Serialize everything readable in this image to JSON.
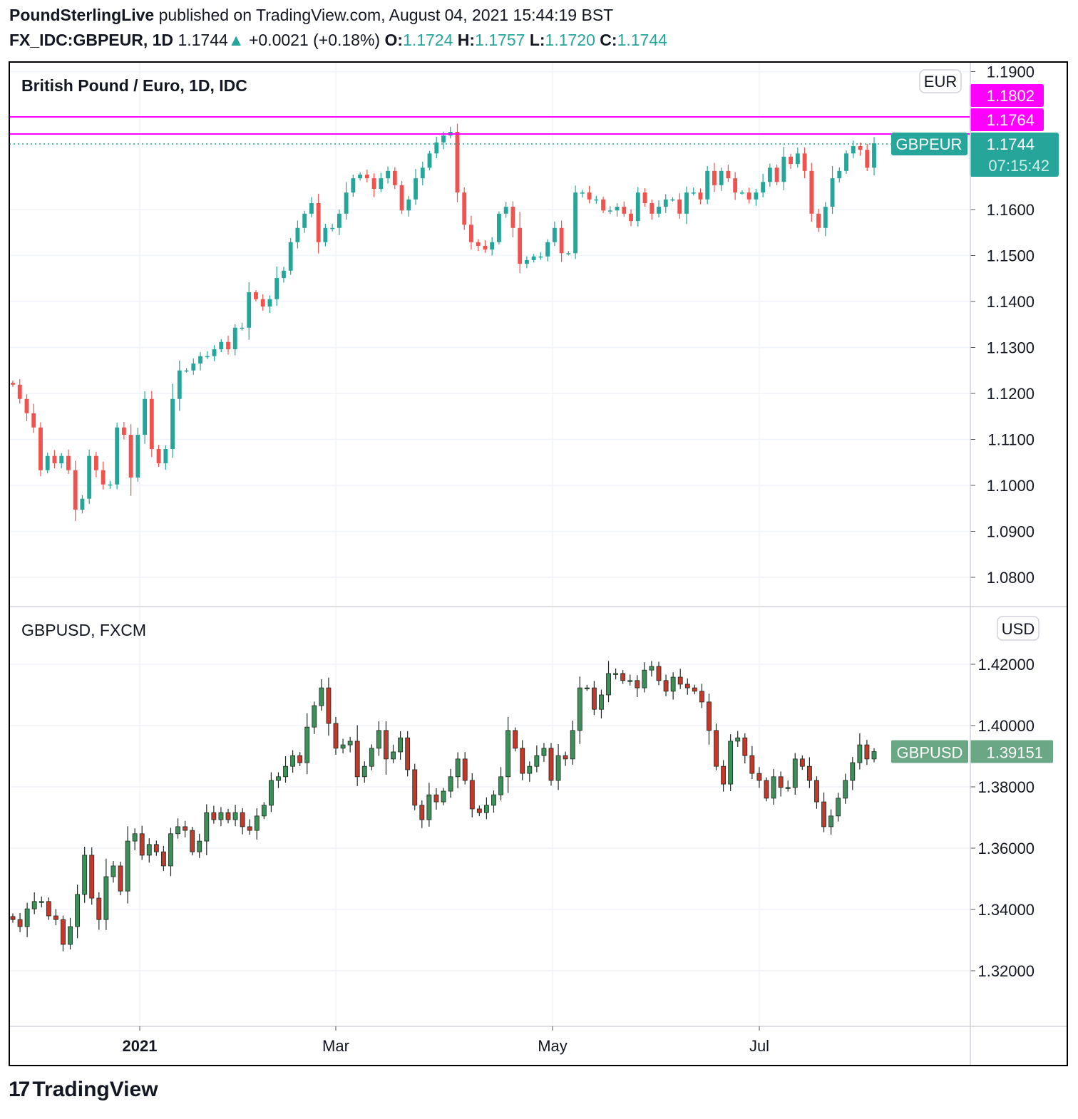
{
  "header": {
    "publisher": "PoundSterlingLive",
    "published_text": "published on TradingView.com, August 04, 2021 15:44:19 BST",
    "symbol": "FX_IDC:GBPEUR, 1D",
    "last": "1.1744",
    "change": "+0.0021 (+0.18%)",
    "o_label": "O:",
    "o": "1.1724",
    "h_label": "H:",
    "h": "1.1757",
    "l_label": "L:",
    "l": "1.1720",
    "c_label": "C:",
    "c": "1.1744"
  },
  "colors": {
    "up": "#26a69a",
    "down": "#ef5350",
    "hline": "#ff00ff",
    "usd_up": "#3d8f5a",
    "usd_down": "#c0392b",
    "usd_label": "#6aa784"
  },
  "chart_data": [
    {
      "type": "candlestick",
      "title": "British Pound / Euro, 1D, IDC",
      "currency": "EUR",
      "series_label": "GBPEUR",
      "last_price": "1.1744",
      "countdown": "07:15:42",
      "hlines": [
        {
          "value": 1.1802,
          "label": "1.1802"
        },
        {
          "value": 1.1764,
          "label": "1.1764"
        }
      ],
      "ylim": [
        1.073,
        1.1915
      ],
      "yticks": [
        "1.0800",
        "1.0900",
        "1.1000",
        "1.1100",
        "1.1200",
        "1.1300",
        "1.1400",
        "1.1500",
        "1.1600",
        "1.1900"
      ],
      "closes": [
        1.1219,
        1.1188,
        1.1157,
        1.1126,
        1.1033,
        1.1064,
        1.1048,
        1.1064,
        1.1033,
        1.0947,
        1.0971,
        1.1064,
        1.1033,
        1.1002,
        1.1002,
        1.1126,
        1.111,
        1.1017,
        1.111,
        1.1188,
        1.1079,
        1.1048,
        1.1079,
        1.1188,
        1.125,
        1.125,
        1.1265,
        1.1281,
        1.1281,
        1.1296,
        1.1312,
        1.1296,
        1.1343,
        1.1343,
        1.142,
        1.1405,
        1.1389,
        1.1405,
        1.1451,
        1.1467,
        1.1529,
        1.156,
        1.1591,
        1.1614,
        1.1529,
        1.156,
        1.156,
        1.1591,
        1.1637,
        1.1668,
        1.1676,
        1.1668,
        1.1645,
        1.1668,
        1.1684,
        1.1653,
        1.1598,
        1.1622,
        1.1668,
        1.1691,
        1.1722,
        1.1746,
        1.1761,
        1.1769,
        1.1637,
        1.1567,
        1.1529,
        1.1521,
        1.1513,
        1.1529,
        1.1591,
        1.1606,
        1.156,
        1.1482,
        1.149,
        1.1498,
        1.1498,
        1.1529,
        1.156,
        1.1505,
        1.1505,
        1.1637,
        1.1637,
        1.1622,
        1.1622,
        1.1598,
        1.1598,
        1.1606,
        1.1591,
        1.1575,
        1.1637,
        1.1614,
        1.1591,
        1.1606,
        1.1622,
        1.1622,
        1.1591,
        1.1637,
        1.1637,
        1.1622,
        1.1684,
        1.1653,
        1.1684,
        1.1668,
        1.1637,
        1.1637,
        1.1622,
        1.1637,
        1.166,
        1.1691,
        1.166,
        1.1715,
        1.1699,
        1.1722,
        1.1684,
        1.1591,
        1.156,
        1.1606,
        1.1668,
        1.1684,
        1.1722,
        1.1738,
        1.173,
        1.1691,
        1.1744
      ]
    },
    {
      "type": "candlestick",
      "title": "GBPUSD, FXCM",
      "currency": "USD",
      "series_label": "GBPUSD",
      "last_price": "1.39151",
      "ylim": [
        1.302,
        1.437
      ],
      "yticks": [
        "1.32000",
        "1.34000",
        "1.36000",
        "1.38000",
        "1.40000",
        "1.42000"
      ],
      "closes": [
        1.3367,
        1.3344,
        1.3402,
        1.3426,
        1.3426,
        1.3379,
        1.3367,
        1.3286,
        1.3344,
        1.3449,
        1.3577,
        1.3437,
        1.3367,
        1.3507,
        1.3542,
        1.346,
        1.3623,
        1.3647,
        1.3577,
        1.3612,
        1.3588,
        1.3542,
        1.3647,
        1.367,
        1.3658,
        1.3588,
        1.3623,
        1.3716,
        1.3693,
        1.3716,
        1.3693,
        1.3716,
        1.367,
        1.3658,
        1.3705,
        1.374,
        1.3821,
        1.3833,
        1.3867,
        1.3902,
        1.3879,
        1.3995,
        1.4065,
        1.4123,
        1.4007,
        1.3926,
        1.3937,
        1.3949,
        1.3833,
        1.3867,
        1.3926,
        1.3984,
        1.3891,
        1.3914,
        1.396,
        1.3856,
        1.374,
        1.3693,
        1.3774,
        1.3751,
        1.3786,
        1.3833,
        1.3891,
        1.3821,
        1.3728,
        1.3716,
        1.374,
        1.3774,
        1.3833,
        1.3984,
        1.3926,
        1.3844,
        1.3867,
        1.3902,
        1.3926,
        1.3821,
        1.3902,
        1.3891,
        1.3984,
        1.4123,
        1.4123,
        1.4053,
        1.41,
        1.417,
        1.417,
        1.4147,
        1.4147,
        1.4123,
        1.4181,
        1.4193,
        1.4147,
        1.4112,
        1.4158,
        1.4135,
        1.4123,
        1.4112,
        1.4077,
        1.3984,
        1.3867,
        1.3809,
        1.3949,
        1.396,
        1.3902,
        1.3844,
        1.3821,
        1.3763,
        1.3833,
        1.3798,
        1.3798,
        1.3891,
        1.3867,
        1.3821,
        1.3751,
        1.367,
        1.3705,
        1.3763,
        1.3821,
        1.3879,
        1.3937,
        1.3891,
        1.3915
      ]
    }
  ],
  "xaxis": {
    "labels": [
      "2021",
      "Mar",
      "May",
      "Jul"
    ]
  },
  "brand": {
    "name": "TradingView"
  }
}
